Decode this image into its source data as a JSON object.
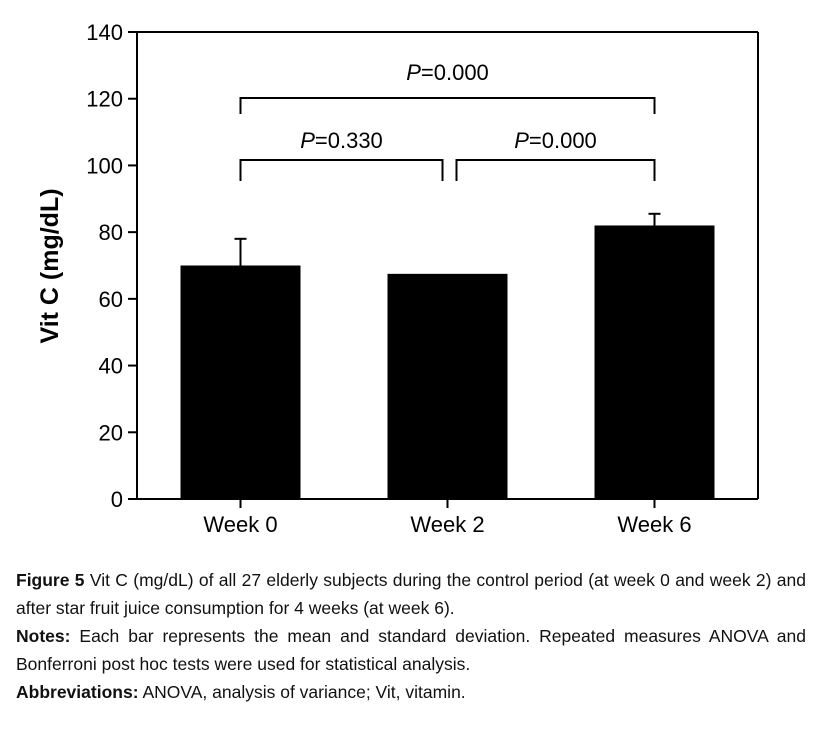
{
  "chart_data": {
    "type": "bar",
    "categories": [
      "Week 0",
      "Week 2",
      "Week 6"
    ],
    "values": [
      70,
      67.5,
      82
    ],
    "error": [
      8,
      0,
      3.5
    ],
    "ylabel": "Vit C (mg/dL)",
    "xlabel": "",
    "ylim": [
      0,
      140
    ],
    "yticks": [
      0,
      20,
      40,
      60,
      80,
      100,
      120,
      140
    ],
    "grid": false,
    "bar_color": "#000000",
    "annotations": [
      {
        "from": 0,
        "to": 2,
        "text_prefix": "P",
        "text_value": "=0.000"
      },
      {
        "from": 0,
        "to": 1,
        "text_prefix": "P",
        "text_value": "=0.330"
      },
      {
        "from": 1,
        "to": 2,
        "text_prefix": "P",
        "text_value": "=0.000"
      }
    ]
  },
  "caption": {
    "figure_label": "Figure 5",
    "figure_text": "Vit C (mg/dL) of all 27 elderly subjects during the control period (at week 0 and week 2) and after star fruit juice consumption for 4 weeks (at week 6).",
    "notes_label": "Notes:",
    "notes_text": "Each bar represents the mean and standard deviation. Repeated measures ANOVA and Bonferroni post hoc tests were used for statistical analysis.",
    "abbr_label": "Abbreviations:",
    "abbr_text": "ANOVA, analysis of variance; Vit, vitamin."
  }
}
